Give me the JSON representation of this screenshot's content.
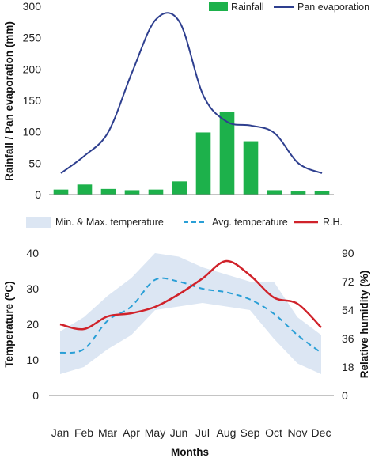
{
  "chart_data": [
    {
      "type": "bar",
      "categories": [
        "Jan",
        "Feb",
        "Mar",
        "Apr",
        "May",
        "Jun",
        "Jul",
        "Aug",
        "Sep",
        "Oct",
        "Nov",
        "Dec"
      ],
      "ylabel": "Rainfall / Pan evaporation (mm)",
      "ylim": [
        0,
        300
      ],
      "yticks": [
        0,
        50,
        100,
        150,
        200,
        250,
        300
      ],
      "legend_position": "top-right",
      "series": [
        {
          "name": "Rainfall",
          "kind": "bar",
          "color": "#1db14b",
          "values": [
            8,
            16,
            9,
            7,
            8,
            21,
            99,
            132,
            85,
            7,
            5,
            6
          ]
        },
        {
          "name": "Pan evaporation",
          "kind": "line",
          "color": "#2e3f8f",
          "values": [
            34,
            62,
            100,
            195,
            279,
            275,
            158,
            116,
            110,
            98,
            50,
            34
          ]
        }
      ]
    },
    {
      "type": "line",
      "categories": [
        "Jan",
        "Feb",
        "Mar",
        "Apr",
        "May",
        "Jun",
        "Jul",
        "Aug",
        "Sep",
        "Oct",
        "Nov",
        "Dec"
      ],
      "xlabel": "Months",
      "ylabel": "Temperature (⁰C)",
      "ylabel_right": "Relative humidity (%)",
      "ylim": [
        0,
        40
      ],
      "yticks": [
        0,
        10,
        20,
        30,
        40
      ],
      "ylim_right": [
        0,
        90
      ],
      "yticks_right": [
        0,
        18,
        36,
        54,
        72,
        90
      ],
      "legend_position": "top",
      "series": [
        {
          "name": "Min. & Max. temperature",
          "kind": "band",
          "color": "#dce6f3",
          "min": [
            6,
            8,
            13,
            17,
            24,
            25,
            26,
            25,
            24,
            16,
            9,
            6
          ],
          "max": [
            18,
            22,
            28,
            33,
            40,
            39,
            36,
            34,
            32,
            32,
            22,
            17
          ]
        },
        {
          "name": "Avg. temperature",
          "kind": "line",
          "style": "dashed",
          "color": "#2a9fd6",
          "values": [
            12,
            13,
            21,
            25,
            32.5,
            32,
            30,
            29,
            27,
            23,
            17,
            12
          ]
        },
        {
          "name": "R.H.",
          "kind": "line",
          "axis": "right",
          "color": "#d0222a",
          "values": [
            45,
            42,
            50,
            52,
            56,
            64,
            74,
            85,
            76,
            62,
            58,
            43
          ]
        }
      ]
    }
  ]
}
